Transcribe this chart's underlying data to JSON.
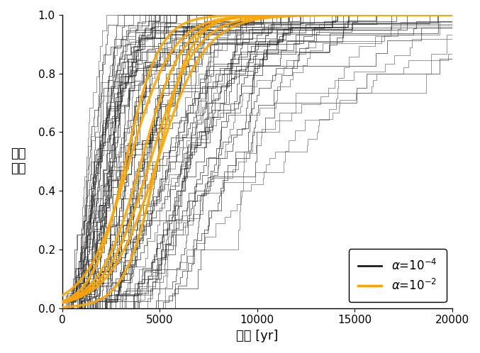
{
  "xlabel": "時間 [yr]",
  "ylabel": "結晶化\n度",
  "xlim": [
    0,
    20000
  ],
  "ylim": [
    0,
    1.0
  ],
  "xticks": [
    0,
    5000,
    10000,
    15000,
    20000
  ],
  "yticks": [
    0,
    0.2,
    0.4,
    0.6,
    0.8,
    1.0
  ],
  "black_color": "#1a1a1a",
  "gray_color": "#555555",
  "orange_color": "#FFA500",
  "black_alpha": 0.7,
  "orange_alpha": 0.9,
  "black_lw": 0.6,
  "orange_lw": 2.5,
  "n_black": 80,
  "n_orange": 6,
  "seed": 123,
  "figsize": [
    6.77,
    4.98
  ],
  "dpi": 100
}
